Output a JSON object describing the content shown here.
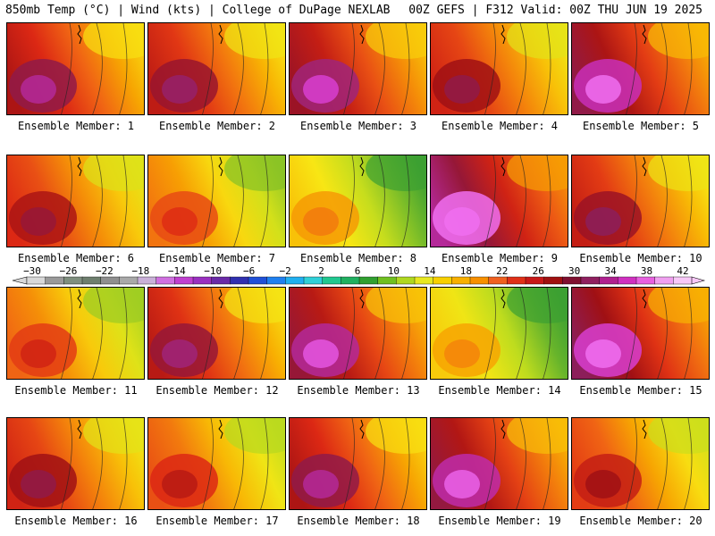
{
  "header": {
    "left": "850mb Temp (°C) | Wind (kts) | College of DuPage NEXLAB",
    "right": "00Z GEFS | F312 Valid: 00Z THU JUN 19 2025"
  },
  "members": [
    {
      "label": "Ensemble Member: 1",
      "hot": 0.78
    },
    {
      "label": "Ensemble Member: 2",
      "hot": 0.75
    },
    {
      "label": "Ensemble Member: 3",
      "hot": 0.82
    },
    {
      "label": "Ensemble Member: 4",
      "hot": 0.72
    },
    {
      "label": "Ensemble Member: 5",
      "hot": 0.86
    },
    {
      "label": "Ensemble Member: 6",
      "hot": 0.7
    },
    {
      "label": "Ensemble Member: 7",
      "hot": 0.55
    },
    {
      "label": "Ensemble Member: 8",
      "hot": 0.4
    },
    {
      "label": "Ensemble Member: 9",
      "hot": 0.92
    },
    {
      "label": "Ensemble Member: 10",
      "hot": 0.74
    },
    {
      "label": "Ensemble Member: 11",
      "hot": 0.58
    },
    {
      "label": "Ensemble Member: 12",
      "hot": 0.76
    },
    {
      "label": "Ensemble Member: 13",
      "hot": 0.84
    },
    {
      "label": "Ensemble Member: 14",
      "hot": 0.38
    },
    {
      "label": "Ensemble Member: 15",
      "hot": 0.88
    },
    {
      "label": "Ensemble Member: 16",
      "hot": 0.72
    },
    {
      "label": "Ensemble Member: 17",
      "hot": 0.62
    },
    {
      "label": "Ensemble Member: 18",
      "hot": 0.78
    },
    {
      "label": "Ensemble Member: 19",
      "hot": 0.85
    },
    {
      "label": "Ensemble Member: 20",
      "hot": 0.66
    }
  ],
  "colorbar": {
    "labels": [
      "−30",
      "−26",
      "−22",
      "−18",
      "−14",
      "−10",
      "−6",
      "−2",
      "2",
      "6",
      "10",
      "14",
      "18",
      "22",
      "26",
      "30",
      "34",
      "38",
      "42"
    ],
    "colors": [
      "#d8d8d8",
      "#9a9a9a",
      "#7f8f7f",
      "#6e7f6e",
      "#8f8f8f",
      "#a9a9a9",
      "#c9b0d8",
      "#d070e0",
      "#c040d0",
      "#9a30c0",
      "#6a2aa8",
      "#3030b0",
      "#2050d8",
      "#2080f0",
      "#20b0f0",
      "#30d0d8",
      "#20c890",
      "#20b060",
      "#30a030",
      "#70c020",
      "#b0d820",
      "#e8e820",
      "#f8d000",
      "#f8b000",
      "#f89000",
      "#f06020",
      "#e03018",
      "#c81818",
      "#a01010",
      "#801030",
      "#902060",
      "#b02090",
      "#d030c0",
      "#e860e0",
      "#f0a0f0",
      "#f8c8f8"
    ]
  }
}
